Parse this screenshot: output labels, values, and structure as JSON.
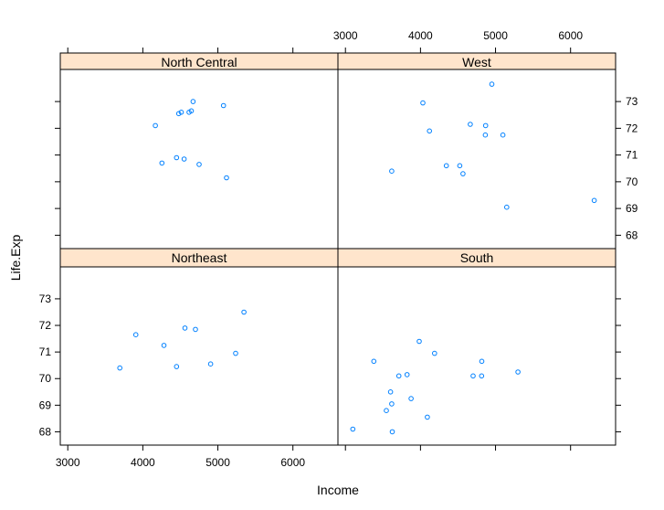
{
  "chart_data": {
    "type": "scatter",
    "layout": "lattice 2x2",
    "xlabel": "Income",
    "ylabel": "Life.Exp",
    "xlim": [
      2900,
      6600
    ],
    "ylim": [
      67.5,
      74.2
    ],
    "x_ticks": [
      3000,
      4000,
      5000,
      6000
    ],
    "y_ticks": [
      68,
      69,
      70,
      71,
      72,
      73
    ],
    "strip_color": "#ffe5cc",
    "point_color": "#0080ff",
    "panels": [
      {
        "name": "North Central",
        "points": [
          [
            4167,
            72.1
          ],
          [
            4255,
            70.7
          ],
          [
            4449,
            70.9
          ],
          [
            4478,
            72.55
          ],
          [
            4513,
            72.6
          ],
          [
            4550,
            70.85
          ],
          [
            4616,
            72.6
          ],
          [
            4646,
            72.65
          ],
          [
            4670,
            73.0
          ],
          [
            4750,
            70.65
          ],
          [
            5075,
            72.85
          ],
          [
            5115,
            70.15
          ]
        ]
      },
      {
        "name": "West",
        "points": [
          [
            3617,
            70.4
          ],
          [
            4032,
            72.95
          ],
          [
            4119,
            71.9
          ],
          [
            4345,
            70.6
          ],
          [
            4524,
            70.6
          ],
          [
            4566,
            70.3
          ],
          [
            4663,
            72.15
          ],
          [
            4864,
            71.75
          ],
          [
            4868,
            72.1
          ],
          [
            4951,
            73.65
          ],
          [
            5098,
            71.75
          ],
          [
            5149,
            69.05
          ],
          [
            6315,
            69.3
          ]
        ]
      },
      {
        "name": "Northeast",
        "points": [
          [
            3694,
            70.4
          ],
          [
            3907,
            71.65
          ],
          [
            4281,
            71.25
          ],
          [
            4449,
            70.45
          ],
          [
            4561,
            71.9
          ],
          [
            4701,
            71.85
          ],
          [
            4903,
            70.55
          ],
          [
            5237,
            70.95
          ],
          [
            5348,
            72.5
          ]
        ]
      },
      {
        "name": "South",
        "points": [
          [
            3098,
            68.1
          ],
          [
            3378,
            70.65
          ],
          [
            3545,
            68.8
          ],
          [
            3601,
            69.5
          ],
          [
            3624,
            68.0
          ],
          [
            3617,
            69.05
          ],
          [
            3712,
            70.1
          ],
          [
            3821,
            70.15
          ],
          [
            3875,
            69.25
          ],
          [
            3983,
            71.4
          ],
          [
            4091,
            68.55
          ],
          [
            4188,
            70.95
          ],
          [
            4701,
            70.1
          ],
          [
            4815,
            70.1
          ],
          [
            4817,
            70.65
          ],
          [
            5299,
            70.25
          ]
        ]
      }
    ]
  }
}
